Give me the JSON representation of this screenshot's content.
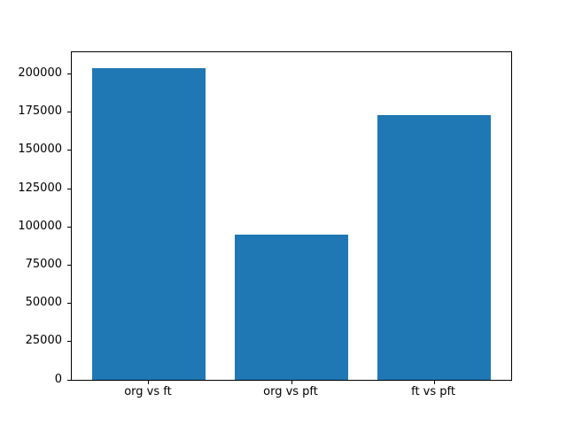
{
  "chart_data": {
    "type": "bar",
    "categories": [
      "org vs ft",
      "org vs pft",
      "ft vs pft"
    ],
    "values": [
      204000,
      95000,
      173000
    ],
    "title": "",
    "xlabel": "",
    "ylabel": "",
    "ylim": [
      0,
      214200
    ],
    "xlim": [
      -0.54,
      2.54
    ],
    "bar_width": 0.8,
    "yticks": [
      0,
      25000,
      50000,
      75000,
      100000,
      125000,
      150000,
      175000,
      200000
    ],
    "bar_color": "#1f77b4",
    "grid": false,
    "legend": "none",
    "background_color": "#ffffff",
    "axis_color": "#000000"
  }
}
